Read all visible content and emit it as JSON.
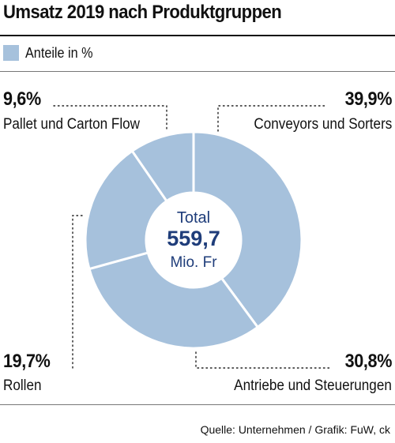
{
  "title": "Umsatz 2019 nach Produktgruppen",
  "legend_label": "Anteile in %",
  "center": {
    "line1": "Total",
    "line2": "559,7",
    "line3": "Mio. Fr"
  },
  "source": "Quelle: Unternehmen / Grafik: FuW, ck",
  "labels": {
    "conveyors_pct": "39,9%",
    "conveyors_name": "Conveyors und Sorters",
    "antriebe_pct": "30,8%",
    "antriebe_name": "Antriebe und Steuerungen",
    "rollen_pct": "19,7%",
    "rollen_name": "Rollen",
    "pallet_pct": "9,6%",
    "pallet_name": "Pallet und Carton Flow"
  },
  "colors": {
    "slice": "#a6c1dc",
    "center_text": "#1f3d7a",
    "separator": "#ffffff"
  },
  "chart_data": {
    "type": "pie",
    "title": "Umsatz 2019 nach Produktgruppen",
    "legend": [
      "Anteile in %"
    ],
    "unit": "%",
    "total": 559.7,
    "total_unit": "Mio. Fr",
    "categories": [
      "Conveyors und Sorters",
      "Antriebe und Steuerungen",
      "Rollen",
      "Pallet und Carton Flow"
    ],
    "values": [
      39.9,
      30.8,
      19.7,
      9.6
    ]
  }
}
